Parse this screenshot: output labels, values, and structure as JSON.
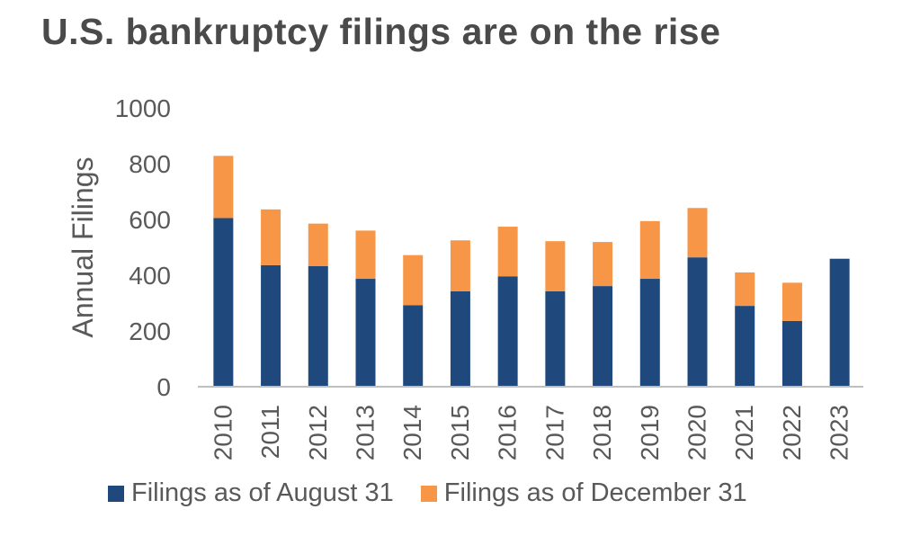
{
  "title": "U.S. bankruptcy filings are on the rise",
  "chart_data": {
    "type": "bar",
    "stacked": true,
    "categories": [
      "2010",
      "2011",
      "2012",
      "2013",
      "2014",
      "2015",
      "2016",
      "2017",
      "2018",
      "2019",
      "2020",
      "2021",
      "2022",
      "2023"
    ],
    "series": [
      {
        "name": "Filings as of August 31",
        "color": "#1f497d",
        "values": [
          605,
          436,
          433,
          387,
          292,
          342,
          396,
          342,
          361,
          387,
          464,
          290,
          236,
          459
        ]
      },
      {
        "name": "Filings as of December 31",
        "color": "#f79646",
        "values": [
          223,
          200,
          152,
          173,
          180,
          183,
          178,
          180,
          158,
          207,
          177,
          120,
          137,
          0
        ]
      }
    ],
    "ylabel": "Annual Filings",
    "ylim": [
      0,
      1000
    ],
    "yticks": [
      "0",
      "200",
      "400",
      "600",
      "800",
      "1000"
    ],
    "grid": false,
    "legend": "bottom"
  }
}
